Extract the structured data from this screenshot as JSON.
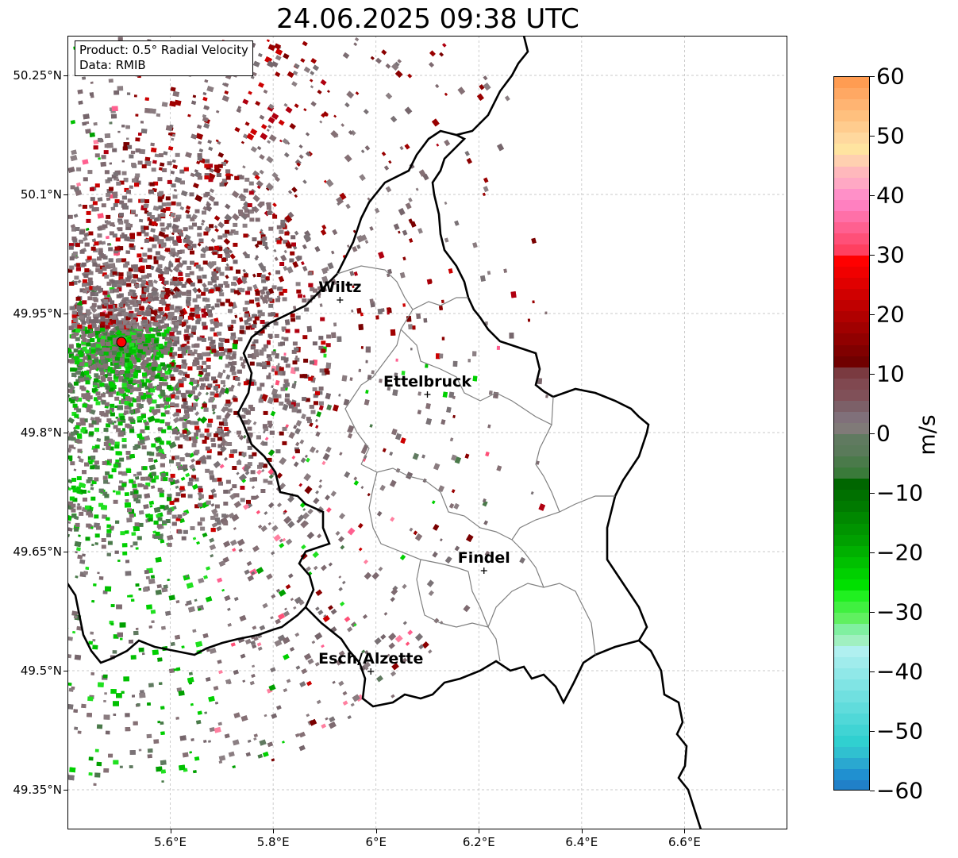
{
  "title": "24.06.2025 09:38 UTC",
  "info_box": {
    "product": "Product: 0.5° Radial Velocity",
    "data": "Data: RMIB"
  },
  "map": {
    "lon_range": [
      5.4,
      6.8
    ],
    "lat_range": [
      49.3,
      50.3
    ],
    "lon_ticks": [
      {
        "value": 5.6,
        "label": "5.6°E"
      },
      {
        "value": 5.8,
        "label": "5.8°E"
      },
      {
        "value": 6.0,
        "label": "6°E"
      },
      {
        "value": 6.2,
        "label": "6.2°E"
      },
      {
        "value": 6.4,
        "label": "6.4°E"
      },
      {
        "value": 6.6,
        "label": "6.6°E"
      }
    ],
    "lat_ticks": [
      {
        "value": 49.35,
        "label": "49.35°N"
      },
      {
        "value": 49.5,
        "label": "49.5°N"
      },
      {
        "value": 49.65,
        "label": "49.65°N"
      },
      {
        "value": 49.8,
        "label": "49.8°N"
      },
      {
        "value": 49.95,
        "label": "49.95°N"
      },
      {
        "value": 50.1,
        "label": "50.1°N"
      },
      {
        "value": 50.25,
        "label": "50.25°N"
      }
    ],
    "radar_site": {
      "lon": 5.505,
      "lat": 49.914
    },
    "cities": [
      {
        "name": "Wiltz",
        "lon": 5.93,
        "lat": 49.967
      },
      {
        "name": "Ettelbruck",
        "lon": 6.1,
        "lat": 49.848
      },
      {
        "name": "Findel",
        "lon": 6.21,
        "lat": 49.626
      },
      {
        "name": "Esch/Alzette",
        "lon": 5.99,
        "lat": 49.499
      }
    ]
  },
  "colorbar": {
    "label": "m/s",
    "vmin": -60,
    "vmax": 60,
    "ticks": [
      {
        "value": 60,
        "label": "60"
      },
      {
        "value": 50,
        "label": "50"
      },
      {
        "value": 40,
        "label": "40"
      },
      {
        "value": 30,
        "label": "30"
      },
      {
        "value": 20,
        "label": "20"
      },
      {
        "value": 10,
        "label": "10"
      },
      {
        "value": 0,
        "label": "0"
      },
      {
        "value": -10,
        "label": "−10"
      },
      {
        "value": -20,
        "label": "−20"
      },
      {
        "value": -30,
        "label": "−30"
      },
      {
        "value": -40,
        "label": "−40"
      },
      {
        "value": -50,
        "label": "−50"
      },
      {
        "value": -60,
        "label": "−60"
      }
    ],
    "colors_top_to_bottom": [
      "#ff9c52",
      "#ffa863",
      "#ffb472",
      "#ffc07e",
      "#ffcc8e",
      "#ffd89e",
      "#ffe4a0",
      "#ffd0b0",
      "#ffb8bc",
      "#ffa8c4",
      "#ff90c8",
      "#ff80c0",
      "#ff70a8",
      "#ff6090",
      "#ff5078",
      "#ff4060",
      "#ff0000",
      "#f00000",
      "#e00000",
      "#d00000",
      "#c00000",
      "#b00000",
      "#a00000",
      "#900000",
      "#800000",
      "#700000",
      "#7a3a40",
      "#804850",
      "#805058",
      "#7c6068",
      "#80707a",
      "#807a78",
      "#607a60",
      "#5a7a5a",
      "#4a7a4a",
      "#3a7a3a",
      "#006600",
      "#007000",
      "#007a00",
      "#008800",
      "#009400",
      "#00a000",
      "#00b000",
      "#00c000",
      "#00d000",
      "#00e000",
      "#20f020",
      "#40f040",
      "#60f060",
      "#80f0a0",
      "#a0f0c0",
      "#b0f0f0",
      "#a0ecec",
      "#90e8e8",
      "#80e4e4",
      "#70e0e0",
      "#60dcdc",
      "#50d8d8",
      "#40d4d4",
      "#30d0d0",
      "#30c0d0",
      "#2aa8d0",
      "#2090d0",
      "#2080c8"
    ]
  }
}
